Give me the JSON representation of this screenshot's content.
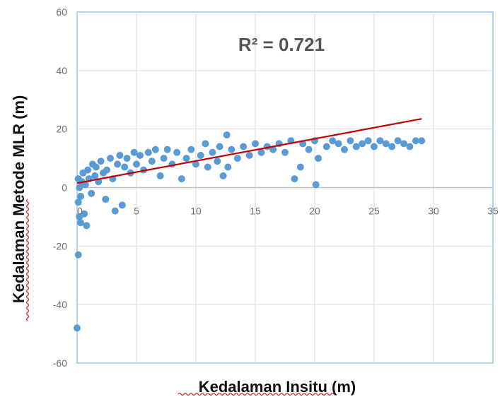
{
  "chart_data": {
    "type": "scatter",
    "title": "",
    "xlabel": "Kedalaman Insitu (m)",
    "ylabel": "Kedalaman Metode MLR (m)",
    "annotation": "R² = 0.721",
    "xlim": [
      0,
      35
    ],
    "ylim": [
      -60,
      60
    ],
    "x_ticks": [
      "0",
      "5",
      "10",
      "15",
      "20",
      "25",
      "30",
      "35"
    ],
    "y_ticks": [
      "60",
      "40",
      "20",
      "0",
      "-20",
      "-40",
      "-60"
    ],
    "grid": true,
    "legend": "none",
    "colors": {
      "points": "#5b9bd5",
      "trendline": "#c00000",
      "frame": "#9dc3e6",
      "grid": "#d9d9d9"
    },
    "series": [
      {
        "marker": "circle",
        "points": [
          [
            0.0,
            -48
          ],
          [
            0.1,
            -23
          ],
          [
            0.3,
            -12
          ],
          [
            0.2,
            -10
          ],
          [
            0.6,
            -9
          ],
          [
            0.8,
            -13
          ],
          [
            0.1,
            -5
          ],
          [
            0.3,
            -3
          ],
          [
            0.2,
            0
          ],
          [
            0.4,
            2
          ],
          [
            0.1,
            3
          ],
          [
            0.5,
            5
          ],
          [
            0.7,
            1
          ],
          [
            0.9,
            6
          ],
          [
            1.0,
            3
          ],
          [
            1.2,
            -2
          ],
          [
            1.3,
            8
          ],
          [
            1.5,
            4
          ],
          [
            1.6,
            7
          ],
          [
            1.8,
            2
          ],
          [
            2.0,
            9
          ],
          [
            2.2,
            5
          ],
          [
            2.4,
            -4
          ],
          [
            2.5,
            6
          ],
          [
            2.8,
            10
          ],
          [
            3.0,
            3
          ],
          [
            3.2,
            -8
          ],
          [
            3.4,
            8
          ],
          [
            3.6,
            11
          ],
          [
            3.8,
            -6
          ],
          [
            4.0,
            7
          ],
          [
            4.2,
            10
          ],
          [
            4.5,
            5
          ],
          [
            4.8,
            12
          ],
          [
            5.0,
            8
          ],
          [
            5.3,
            11
          ],
          [
            5.6,
            6
          ],
          [
            6.0,
            12
          ],
          [
            6.3,
            9
          ],
          [
            6.6,
            13
          ],
          [
            7.0,
            4
          ],
          [
            7.3,
            10
          ],
          [
            7.6,
            13
          ],
          [
            8.0,
            8
          ],
          [
            8.4,
            12
          ],
          [
            8.8,
            3
          ],
          [
            9.2,
            10
          ],
          [
            9.6,
            13
          ],
          [
            10.0,
            8
          ],
          [
            10.4,
            11
          ],
          [
            10.8,
            15
          ],
          [
            11.0,
            7
          ],
          [
            11.4,
            12
          ],
          [
            11.8,
            9
          ],
          [
            12.0,
            14
          ],
          [
            12.3,
            4
          ],
          [
            12.6,
            18
          ],
          [
            12.7,
            7
          ],
          [
            13.0,
            13
          ],
          [
            13.5,
            10
          ],
          [
            14.0,
            14
          ],
          [
            14.5,
            11
          ],
          [
            15.0,
            15
          ],
          [
            15.5,
            12
          ],
          [
            16.0,
            14
          ],
          [
            16.5,
            13
          ],
          [
            17.0,
            15
          ],
          [
            17.5,
            12
          ],
          [
            18.0,
            16
          ],
          [
            18.3,
            3
          ],
          [
            18.8,
            7
          ],
          [
            19.0,
            15
          ],
          [
            19.5,
            13
          ],
          [
            20.0,
            16
          ],
          [
            20.1,
            1
          ],
          [
            20.3,
            10
          ],
          [
            21.0,
            14
          ],
          [
            21.5,
            16
          ],
          [
            22.0,
            15
          ],
          [
            22.5,
            13
          ],
          [
            23.0,
            16
          ],
          [
            23.5,
            14
          ],
          [
            24.0,
            15
          ],
          [
            24.5,
            16
          ],
          [
            25.0,
            14
          ],
          [
            25.5,
            16
          ],
          [
            26.0,
            15
          ],
          [
            26.5,
            14
          ],
          [
            27.0,
            16
          ],
          [
            27.5,
            15
          ],
          [
            28.0,
            14
          ],
          [
            28.5,
            16
          ],
          [
            29.0,
            16
          ]
        ]
      }
    ],
    "trendline": {
      "from": [
        0,
        1.5
      ],
      "to": [
        29,
        23.5
      ]
    }
  }
}
